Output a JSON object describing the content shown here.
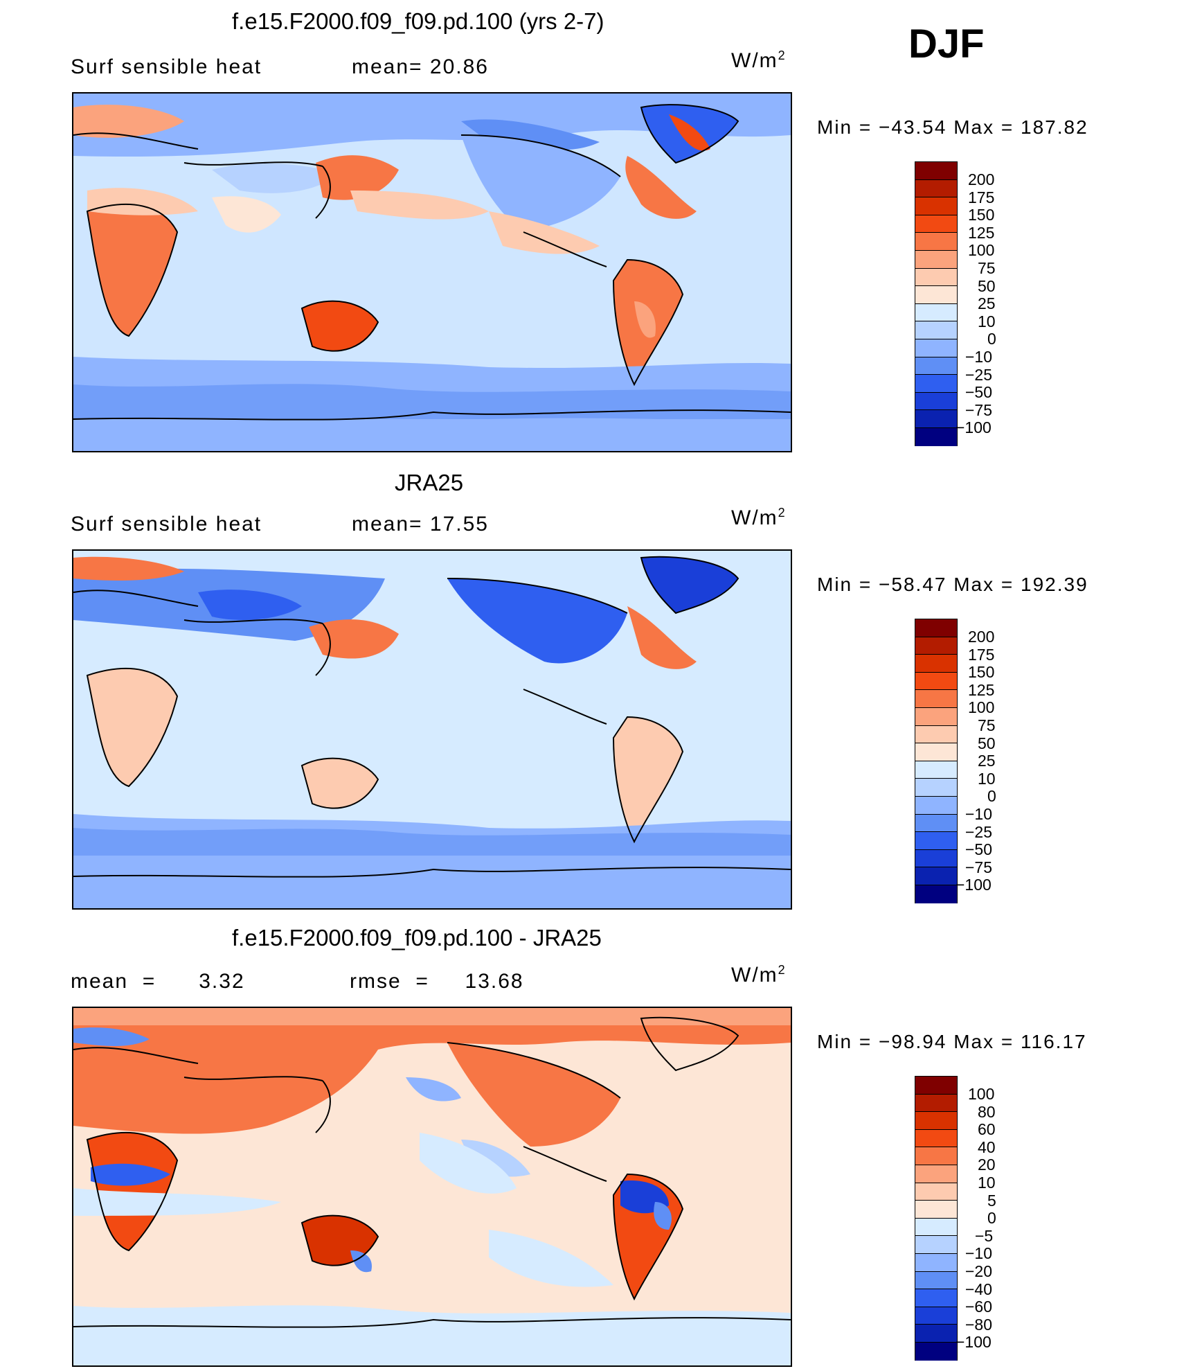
{
  "season_label": "DJF",
  "units_html": "W/m",
  "units_sup": "2",
  "panels": [
    {
      "title": "f.e15.F2000.f09_f09.pd.100 (yrs 2-7)",
      "left_label": "Surf  sensible  heat",
      "mid_label": "mean=   20.86",
      "minmax": "Min  =  −43.54  Max  =  187.82",
      "levels": [
        "200",
        "175",
        "150",
        "125",
        "100",
        "75",
        "50",
        "25",
        "10",
        "0",
        "−10",
        "−25",
        "−50",
        "−75",
        "−100"
      ]
    },
    {
      "title": "JRA25",
      "left_label": "Surf  sensible  heat",
      "mid_label": "mean=   17.55",
      "minmax": "Min  =  −58.47  Max  =  192.39",
      "levels": [
        "200",
        "175",
        "150",
        "125",
        "100",
        "75",
        "50",
        "25",
        "10",
        "0",
        "−10",
        "−25",
        "−50",
        "−75",
        "−100"
      ]
    },
    {
      "title": "f.e15.F2000.f09_f09.pd.100 - JRA25",
      "left_label": "mean  =      3.32",
      "mid_label": "rmse  =     13.68",
      "minmax": "Min  =  −98.94  Max  =  116.17",
      "levels": [
        "100",
        "80",
        "60",
        "40",
        "20",
        "10",
        "5",
        "0",
        "−5",
        "−10",
        "−20",
        "−40",
        "−60",
        "−80",
        "−100"
      ]
    }
  ],
  "colors": {
    "scale": [
      "#7f0000",
      "#b31c00",
      "#d93200",
      "#f24a12",
      "#f77645",
      "#fba37d",
      "#fdcbb0",
      "#fde6d6",
      "#d6ebff",
      "#b6d2ff",
      "#8fb4ff",
      "#5f8ff5",
      "#2f5ff0",
      "#1a3fd8",
      "#0a22b0",
      "#000080"
    ]
  }
}
